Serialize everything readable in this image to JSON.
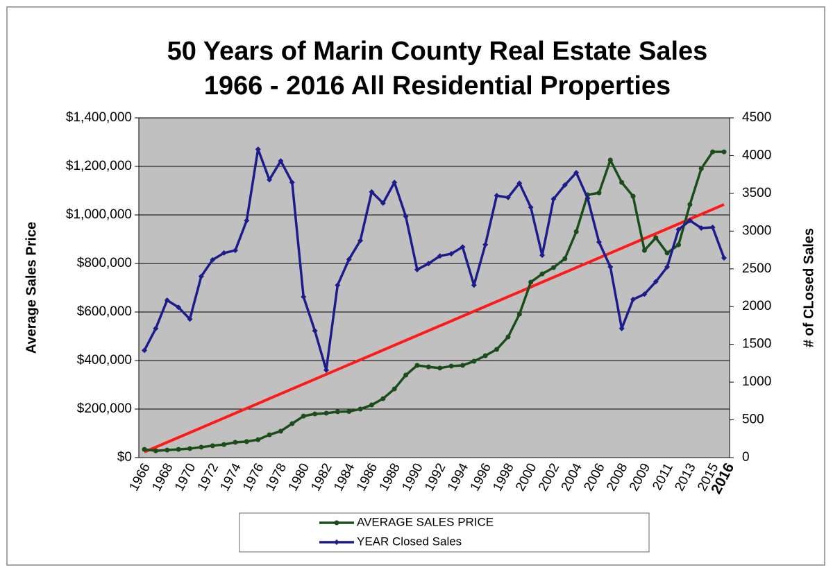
{
  "chart_data": {
    "type": "line",
    "title": "50 Years of Marin County Real Estate Sales",
    "subtitle": "1966 - 2016  All Residential Properties",
    "y_label": "Average Sales Price",
    "y2_label": "# of CLosed Sales",
    "categories": [
      "1966",
      null,
      "1968",
      null,
      "1970",
      null,
      "1972",
      null,
      "1974",
      null,
      "1976",
      null,
      "1978",
      null,
      "1980",
      null,
      "1982",
      null,
      "1984",
      null,
      "1986",
      null,
      "1988",
      null,
      "1990",
      null,
      "1992",
      null,
      "1994",
      null,
      "1996",
      null,
      "1998",
      null,
      "2000",
      null,
      "2002",
      null,
      "2004",
      null,
      "2006",
      null,
      "2008",
      null,
      "2009",
      null,
      "2011",
      null,
      "2013",
      null,
      "2015",
      "2016"
    ],
    "series": [
      {
        "name": "AVERAGE  SALES PRICE",
        "color": "#1b4d1b",
        "values": [
          34000,
          28000,
          31000,
          34000,
          37000,
          43000,
          49000,
          54000,
          63000,
          66000,
          74000,
          94000,
          109000,
          140000,
          171000,
          180000,
          183000,
          189000,
          190000,
          200000,
          217000,
          243000,
          283000,
          340000,
          380000,
          374000,
          369000,
          377000,
          380000,
          397000,
          420000,
          446000,
          497000,
          591000,
          723000,
          757000,
          783000,
          820000,
          931000,
          1083000,
          1091000,
          1226000,
          1134000,
          1077000,
          854000,
          906000,
          843000,
          877000,
          1043000,
          1191000,
          1260000,
          1260000
        ]
      },
      {
        "name": "YEAR Closed Sales",
        "color": "#1c1c8a",
        "axis": "y2",
        "values": [
          1420,
          1710,
          2085,
          1990,
          1835,
          2400,
          2620,
          2710,
          2745,
          3140,
          4085,
          3680,
          3930,
          3645,
          2130,
          1680,
          1160,
          2285,
          2625,
          2875,
          3520,
          3370,
          3645,
          3195,
          2490,
          2570,
          2670,
          2700,
          2790,
          2285,
          2820,
          3470,
          3445,
          3635,
          3315,
          2680,
          3425,
          3610,
          3775,
          3435,
          2855,
          2525,
          1710,
          2095,
          2165,
          2330,
          2525,
          3020,
          3140,
          3040,
          3050,
          2645
        ]
      }
    ],
    "trendline": {
      "color": "#ff1a1a",
      "values": [
        23000,
        1043000
      ]
    },
    "ylim": [
      0,
      1400000
    ],
    "yticks": [
      {
        "value": 0,
        "label": "$0"
      },
      {
        "value": 200000,
        "label": "$200,000"
      },
      {
        "value": 400000,
        "label": "$400,000"
      },
      {
        "value": 600000,
        "label": "$600,000"
      },
      {
        "value": 800000,
        "label": "$800,000"
      },
      {
        "value": 1000000,
        "label": "$1,000,000"
      },
      {
        "value": 1200000,
        "label": "$1,200,000"
      },
      {
        "value": 1400000,
        "label": "$1,400,000"
      }
    ],
    "y2lim": [
      0,
      4500
    ],
    "y2ticks": [
      0,
      500,
      1000,
      1500,
      2000,
      2500,
      3000,
      3500,
      4000,
      4500
    ],
    "grid": true,
    "plot_color": "#c0c0c0",
    "legend": "bottom"
  }
}
